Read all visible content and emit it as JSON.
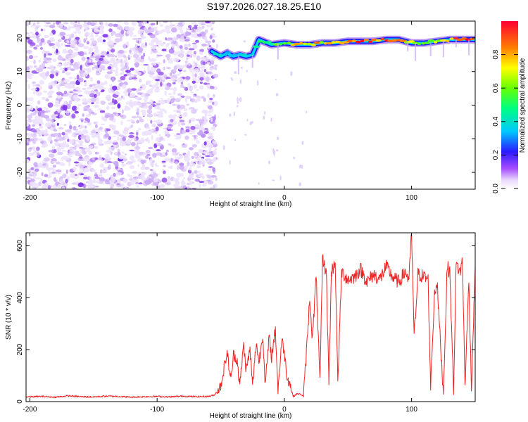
{
  "title": "S197.2026.027.18.25.E10",
  "chart_data": [
    {
      "type": "heatmap",
      "xlabel": "Height of straight line (km)",
      "ylabel": "Frequency (Hz)",
      "xlim": [
        -203,
        150
      ],
      "ylim": [
        -25,
        25
      ],
      "xticks": [
        -200,
        -100,
        0,
        100
      ],
      "yticks": [
        -20,
        -10,
        0,
        10,
        20
      ],
      "noise_region_x": [
        -203,
        -57
      ],
      "signal_track": {
        "x": [
          -57,
          -50,
          -45,
          -40,
          -35,
          -30,
          -25,
          -20,
          -10,
          0,
          10,
          20,
          30,
          40,
          50,
          60,
          70,
          80,
          90,
          100,
          110,
          120,
          130,
          140,
          150
        ],
        "freq_hz": [
          16,
          14.5,
          15.5,
          14.5,
          15,
          14.5,
          15,
          19.5,
          18,
          18.5,
          18,
          18,
          18.5,
          18.5,
          19,
          19,
          19,
          19.5,
          19.5,
          18.5,
          18.5,
          19,
          19.5,
          19.5,
          19.5
        ],
        "amplitude": [
          0.25,
          0.3,
          0.3,
          0.35,
          0.35,
          0.4,
          0.4,
          0.45,
          0.5,
          0.55,
          0.7,
          0.75,
          0.75,
          0.8,
          0.9,
          0.9,
          0.85,
          0.85,
          0.8,
          0.6,
          0.65,
          0.7,
          0.8,
          0.95,
          0.85
        ]
      },
      "colorbar": {
        "label": "Normalized spectral amplitude",
        "range": [
          0,
          1
        ],
        "ticks": [
          "0.0",
          "0.2",
          "0.4",
          "0.6",
          "0.8"
        ]
      }
    },
    {
      "type": "line",
      "xlabel": "Height of straight line (km)",
      "ylabel": "SNR (10 * v/v)",
      "xlim": [
        -203,
        150
      ],
      "ylim": [
        0,
        650
      ],
      "xticks": [
        -200,
        -100,
        0,
        100
      ],
      "yticks": [
        0,
        200,
        400,
        600
      ],
      "series": [
        {
          "name": "SNR",
          "color": "#ee2222",
          "x": [
            -203,
            -190,
            -180,
            -170,
            -160,
            -150,
            -140,
            -130,
            -120,
            -110,
            -100,
            -90,
            -80,
            -70,
            -60,
            -55,
            -50,
            -45,
            -42,
            -40,
            -37,
            -35,
            -32,
            -30,
            -27,
            -25,
            -22,
            -20,
            -17,
            -15,
            -12,
            -10,
            -7,
            -5,
            -2,
            0,
            2,
            5,
            7,
            10,
            13,
            15,
            17,
            20,
            22,
            25,
            28,
            30,
            33,
            35,
            37,
            40,
            42,
            45,
            50,
            55,
            60,
            65,
            70,
            75,
            80,
            85,
            90,
            95,
            98,
            100,
            102,
            105,
            110,
            113,
            115,
            118,
            120,
            123,
            125,
            128,
            130,
            133,
            135,
            138,
            140,
            142,
            145,
            147,
            150
          ],
          "y": [
            18,
            20,
            17,
            22,
            19,
            18,
            21,
            20,
            17,
            19,
            20,
            18,
            21,
            19,
            20,
            25,
            60,
            190,
            80,
            180,
            160,
            60,
            220,
            120,
            200,
            60,
            230,
            150,
            260,
            60,
            250,
            170,
            280,
            40,
            240,
            190,
            100,
            60,
            20,
            30,
            28,
            20,
            160,
            400,
            240,
            480,
            70,
            550,
            500,
            80,
            500,
            540,
            70,
            500,
            470,
            480,
            510,
            460,
            490,
            470,
            520,
            480,
            460,
            500,
            470,
            650,
            250,
            490,
            480,
            470,
            60,
            420,
            460,
            200,
            30,
            520,
            500,
            40,
            530,
            500,
            540,
            60,
            470,
            50,
            520
          ]
        }
      ]
    }
  ]
}
